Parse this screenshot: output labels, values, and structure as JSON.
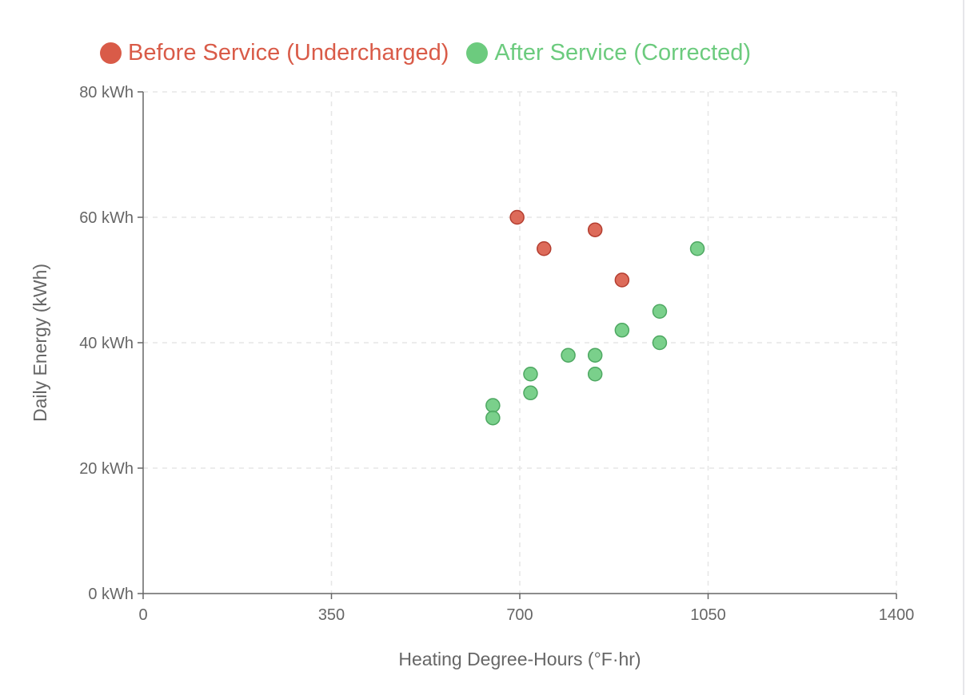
{
  "colors": {
    "before": "#d95b48",
    "before_stroke": "#b43e30",
    "after": "#6ccb7e",
    "after_stroke": "#4ea862",
    "axis": "#666666",
    "grid": "#e6e6e6",
    "text": "#666666"
  },
  "legend": [
    {
      "label": "Before Service (Undercharged)",
      "color": "#d95b48"
    },
    {
      "label": "After Service (Corrected)",
      "color": "#6ccb7e"
    }
  ],
  "chart_data": {
    "type": "scatter",
    "title": "",
    "xlabel": "Heating Degree-Hours (°F·hr)",
    "ylabel": "Daily Energy (kWh)",
    "xlim": [
      0,
      1400
    ],
    "ylim": [
      0,
      80
    ],
    "x_ticks": [
      0,
      350,
      700,
      1050,
      1400
    ],
    "x_tick_labels": [
      "0",
      "350",
      "700",
      "1050",
      "1400"
    ],
    "y_ticks": [
      0,
      20,
      40,
      60,
      80
    ],
    "y_tick_labels": [
      "0 kWh",
      "20 kWh",
      "40 kWh",
      "60 kWh",
      "80 kWh"
    ],
    "grid": true,
    "legend_position": "top",
    "series": [
      {
        "name": "Before Service (Undercharged)",
        "points": [
          {
            "x": 695,
            "y": 60
          },
          {
            "x": 745,
            "y": 55
          },
          {
            "x": 840,
            "y": 58
          },
          {
            "x": 890,
            "y": 50
          }
        ]
      },
      {
        "name": "After Service (Corrected)",
        "points": [
          {
            "x": 650,
            "y": 30
          },
          {
            "x": 650,
            "y": 28
          },
          {
            "x": 720,
            "y": 35
          },
          {
            "x": 720,
            "y": 32
          },
          {
            "x": 790,
            "y": 38
          },
          {
            "x": 840,
            "y": 38
          },
          {
            "x": 840,
            "y": 35
          },
          {
            "x": 890,
            "y": 42
          },
          {
            "x": 960,
            "y": 45
          },
          {
            "x": 960,
            "y": 40
          },
          {
            "x": 1030,
            "y": 55
          }
        ]
      }
    ]
  }
}
